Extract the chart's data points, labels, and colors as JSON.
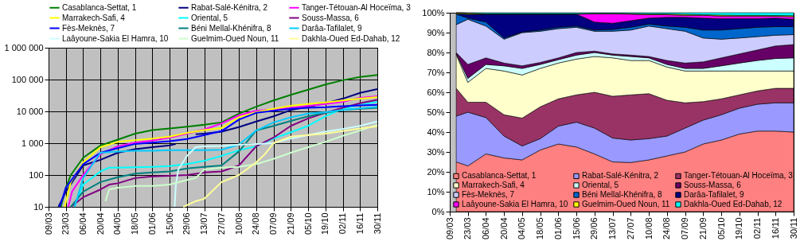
{
  "chart_data": [
    {
      "type": "line",
      "log": "y",
      "grid": true,
      "legend": "top",
      "xlim": [
        "--03-09",
        "--11-30"
      ],
      "ylim": [
        10,
        1000000
      ],
      "xticks": [
        {
          "value": "--03-09",
          "label": "09/03"
        },
        {
          "value": "--03-23",
          "label": "23/03"
        },
        {
          "value": "--04-06",
          "label": "06/04"
        },
        {
          "value": "--04-20",
          "label": "20/04"
        },
        {
          "value": "--05-04",
          "label": "04/05"
        },
        {
          "value": "--05-18",
          "label": "18/05"
        },
        {
          "value": "--06-01",
          "label": "01/06"
        },
        {
          "value": "--06-15",
          "label": "15/06"
        },
        {
          "value": "--06-29",
          "label": "29/06"
        },
        {
          "value": "--07-13",
          "label": "13/07"
        },
        {
          "value": "--07-27",
          "label": "27/07"
        },
        {
          "value": "--08-10",
          "label": "10/08"
        },
        {
          "value": "--08-24",
          "label": "24/08"
        },
        {
          "value": "--09-07",
          "label": "07/09"
        },
        {
          "value": "--09-21",
          "label": "21/09"
        },
        {
          "value": "--10-05",
          "label": "05/10"
        },
        {
          "value": "--10-19",
          "label": "19/10"
        },
        {
          "value": "--11-02",
          "label": "02/11"
        },
        {
          "value": "--11-16",
          "label": "16/11"
        },
        {
          "value": "--11-30",
          "label": "30/11"
        }
      ],
      "yticks": [
        10,
        100,
        {
          "value": 1000,
          "label": "1 000"
        },
        {
          "value": 10000,
          "label": "10 000"
        },
        {
          "value": 100000,
          "label": "100 000"
        },
        {
          "value": 1000000,
          "label": "1 000 000"
        }
      ],
      "series": [
        {
          "name": "Casablanca-Settat, 1",
          "color": "#008000",
          "x": [
            "--03-19",
            "--03-23",
            "--03-27",
            "--04-06",
            "--04-20",
            "--05-04",
            "--05-18",
            "--06-01",
            "--06-15",
            "--06-29",
            "--07-13",
            "--07-27",
            "--08-10",
            "--08-24",
            "--09-07",
            "--09-21",
            "--10-05",
            "--10-19",
            "--11-02",
            "--11-16",
            "--11-30"
          ],
          "values": [
            10,
            40,
            100,
            350,
            850,
            1300,
            2000,
            2600,
            2900,
            3300,
            3800,
            4500,
            8500,
            14000,
            22000,
            33000,
            48000,
            70000,
            95000,
            120000,
            140000
          ]
        },
        {
          "name": "Rabat-Salé-Kénitra, 2",
          "color": "#000080",
          "x": [
            "--03-17",
            "--03-23",
            "--04-06",
            "--04-20",
            "--05-04",
            "--05-18",
            "--06-01",
            "--06-15",
            "--06-20",
            "--06-29",
            "--07-06",
            "--07-13",
            "--07-27",
            "--08-10",
            "--08-24",
            "--09-07",
            "--09-21",
            "--10-05",
            "--10-19",
            "--11-02",
            "--11-16",
            "--11-30"
          ],
          "values": [
            10,
            30,
            200,
            300,
            500,
            650,
            750,
            850,
            950,
            null,
            1900,
            2000,
            2300,
            3200,
            4800,
            7000,
            11000,
            14000,
            18000,
            25000,
            38000,
            50000
          ]
        },
        {
          "name": "Tanger-Tétouan-Al Hoceïma, 3",
          "color": "#ff00ff",
          "x": [
            "--03-25",
            "--03-28",
            "--04-06",
            "--04-20",
            "--05-04",
            "--05-18",
            "--06-01",
            "--06-15",
            "--06-29",
            "--07-13",
            "--07-27",
            "--08-10",
            "--08-24",
            "--09-07",
            "--09-21",
            "--10-05",
            "--10-19",
            "--11-02",
            "--11-16",
            "--11-30"
          ],
          "values": [
            10,
            30,
            100,
            450,
            800,
            1050,
            1200,
            1500,
            2000,
            2700,
            4200,
            7500,
            10500,
            11500,
            13000,
            15000,
            17000,
            20000,
            26500,
            30000
          ]
        },
        {
          "name": "Marrakech-Safi, 4",
          "color": "#ffff00",
          "x": [
            "--03-22",
            "--03-27",
            "--04-06",
            "--04-20",
            "--05-04",
            "--05-18",
            "--06-01",
            "--06-15",
            "--06-29",
            "--07-13",
            "--07-27",
            "--08-10",
            "--08-24",
            "--09-07",
            "--09-21",
            "--10-05",
            "--10-19",
            "--11-02",
            "--11-16",
            "--11-30"
          ],
          "values": [
            10,
            60,
            250,
            750,
            1100,
            1250,
            1400,
            1600,
            2100,
            2600,
            3000,
            6500,
            9500,
            12000,
            15000,
            17000,
            19000,
            22000,
            25000,
            28000
          ]
        },
        {
          "name": "Oriental, 5",
          "color": "#00ffff",
          "x": [
            "--03-30",
            "--04-06",
            "--04-20",
            "--04-27",
            "--05-04",
            "--06-01",
            "--06-15",
            "--06-29",
            "--07-13",
            "--07-27",
            "--08-10",
            "--08-24",
            "--09-07",
            "--09-21",
            "--10-05",
            "--10-19",
            "--11-02",
            "--11-16",
            "--11-30"
          ],
          "values": [
            10,
            50,
            130,
            170,
            170,
            180,
            190,
            220,
            280,
            400,
            600,
            800,
            1400,
            2200,
            3500,
            7000,
            12000,
            16000,
            20000
          ]
        },
        {
          "name": "Souss-Massa, 6",
          "color": "#800080",
          "x": [
            "--03-27",
            "--04-06",
            "--04-20",
            "--04-27",
            "--05-04",
            "--05-18",
            "--06-01",
            "--06-15",
            "--06-29",
            "--07-13",
            "--07-27",
            "--08-10",
            "--08-24",
            "--09-07",
            "--09-21",
            "--10-05",
            "--10-19",
            "--11-02",
            "--11-16",
            "--11-30"
          ],
          "values": [
            10,
            20,
            35,
            50,
            55,
            80,
            90,
            95,
            100,
            120,
            130,
            200,
            800,
            1500,
            3500,
            6000,
            9000,
            13000,
            18000,
            23000
          ]
        },
        {
          "name": "Fès-Meknès, 7",
          "color": "#0000ff",
          "x": [
            "--03-18",
            "--03-23",
            "--04-06",
            "--04-20",
            "--05-04",
            "--05-18",
            "--06-01",
            "--06-15",
            "--06-29",
            "--07-13",
            "--07-27",
            "--08-10",
            "--08-24",
            "--09-07",
            "--09-21",
            "--10-05",
            "--10-19",
            "--11-02",
            "--11-16",
            "--11-30"
          ],
          "values": [
            10,
            40,
            220,
            500,
            700,
            950,
            1050,
            1150,
            1350,
            1800,
            2400,
            5500,
            9000,
            10500,
            12000,
            13000,
            13500,
            14500,
            15500,
            16000
          ]
        },
        {
          "name": "Béni Mellal-Khénifra, 8",
          "color": "#008080",
          "x": [
            "--03-27",
            "--04-06",
            "--04-20",
            "--05-04",
            "--05-18",
            "--06-01",
            "--06-15",
            "--06-29",
            "--07-13",
            "--07-27",
            "--08-10",
            "--08-24",
            "--09-07",
            "--09-21",
            "--10-05",
            "--10-19",
            "--11-02",
            "--11-16",
            "--11-30"
          ],
          "values": [
            10,
            30,
            60,
            85,
            110,
            120,
            130,
            160,
            180,
            200,
            550,
            2500,
            3500,
            5000,
            7000,
            9000,
            11000,
            12000,
            13000
          ]
        },
        {
          "name": "Darâa-Tafilalet, 9",
          "color": "#00ccff",
          "x": [
            "--03-30",
            "--04-06",
            "--04-20",
            "--05-04",
            "--05-18",
            "--06-01",
            "--06-15",
            "--06-29",
            "--07-13",
            "--07-27",
            "--08-10",
            "--08-24",
            "--09-07",
            "--09-21",
            "--10-05",
            "--10-19",
            "--11-02",
            "--11-16",
            "--11-30"
          ],
          "values": [
            10,
            80,
            500,
            550,
            580,
            580,
            600,
            600,
            600,
            620,
            900,
            2500,
            4500,
            6500,
            8500,
            9500,
            11000,
            12500,
            14000
          ]
        },
        {
          "name": "Laâyoune-Sakia El Hamra, 10",
          "color": "#ccffff",
          "x": [
            "--06-19",
            "--06-20",
            "--06-22",
            "--06-29",
            "--07-06",
            "--07-13",
            "--07-27",
            "--08-10",
            "--08-24",
            "--09-07",
            "--09-21",
            "--10-05",
            "--10-19",
            "--11-02",
            "--11-16",
            "--11-30"
          ],
          "values": [
            10,
            50,
            150,
            400,
            750,
            800,
            820,
            900,
            950,
            1000,
            1400,
            1800,
            2300,
            2800,
            3500,
            4800
          ]
        },
        {
          "name": "Guelmim-Oued Noun, 11",
          "color": "#ccffcc",
          "x": [
            "--04-24",
            "--04-27",
            "--05-04",
            "--05-18",
            "--06-01",
            "--06-15",
            "--06-29",
            "--07-06",
            "--07-13",
            "--07-27",
            "--08-10",
            "--08-24",
            "--09-07",
            "--09-21",
            "--10-05",
            "--10-19",
            "--11-02",
            "--11-16",
            "--11-30"
          ],
          "values": [
            15,
            35,
            40,
            45,
            45,
            50,
            70,
            80,
            150,
            170,
            180,
            220,
            320,
            500,
            750,
            1100,
            1700,
            2500,
            3800
          ]
        },
        {
          "name": "Dakhla-Oued Ed-Dahab, 12",
          "color": "#ffff99",
          "x": [
            "--06-26",
            "--07-06",
            "--07-13",
            "--07-27",
            "--08-10",
            "--08-24",
            "--08-31",
            "--09-07",
            "--09-21",
            "--10-05",
            "--10-19",
            "--11-02",
            "--11-16",
            "--11-30"
          ],
          "values": [
            10,
            15,
            18,
            60,
            100,
            250,
            450,
            1000,
            1600,
            1800,
            2000,
            2400,
            2900,
            3400
          ]
        }
      ]
    },
    {
      "type": "area",
      "stacked": true,
      "legend": "bottom left",
      "xlim": [
        "--03-09",
        "--11-30"
      ],
      "ylim": [
        0,
        100
      ],
      "xticks": [
        {
          "value": "--03-09",
          "label": "09/03"
        },
        {
          "value": "--03-23",
          "label": "23/03"
        },
        {
          "value": "--04-06",
          "label": "06/04"
        },
        {
          "value": "--04-20",
          "label": "20/04"
        },
        {
          "value": "--05-04",
          "label": "04/05"
        },
        {
          "value": "--05-18",
          "label": "18/05"
        },
        {
          "value": "--06-01",
          "label": "01/06"
        },
        {
          "value": "--06-15",
          "label": "15/06"
        },
        {
          "value": "--06-29",
          "label": "29/06"
        },
        {
          "value": "--07-13",
          "label": "13/07"
        },
        {
          "value": "--07-27",
          "label": "27/07"
        },
        {
          "value": "--08-10",
          "label": "10/08"
        },
        {
          "value": "--08-24",
          "label": "24/08"
        },
        {
          "value": "--09-07",
          "label": "07/09"
        },
        {
          "value": "--09-21",
          "label": "21/09"
        },
        {
          "value": "--10-05",
          "label": "05/10"
        },
        {
          "value": "--10-19",
          "label": "19/10"
        },
        {
          "value": "--11-02",
          "label": "02/11"
        },
        {
          "value": "--11-16",
          "label": "16/11"
        },
        {
          "value": "--11-30",
          "label": "30/11"
        }
      ],
      "yticks": [
        {
          "value": 0,
          "label": "0%"
        },
        {
          "value": 10,
          "label": "10%"
        },
        {
          "value": 20,
          "label": "20%"
        },
        {
          "value": 30,
          "label": "30%"
        },
        {
          "value": 40,
          "label": "40%"
        },
        {
          "value": 50,
          "label": "50%"
        },
        {
          "value": 60,
          "label": "60%"
        },
        {
          "value": 70,
          "label": "70%"
        },
        {
          "value": 80,
          "label": "80%"
        },
        {
          "value": 90,
          "label": "90%"
        },
        {
          "value": 100,
          "label": "100%"
        }
      ],
      "x": [
        "--03-14",
        "--03-23",
        "--04-06",
        "--04-20",
        "--05-04",
        "--05-18",
        "--06-01",
        "--06-15",
        "--06-29",
        "--07-13",
        "--07-27",
        "--08-10",
        "--08-24",
        "--09-07",
        "--09-21",
        "--10-05",
        "--10-19",
        "--11-02",
        "--11-16",
        "--11-30"
      ],
      "series": [
        {
          "name": "Casablanca-Settat, 1",
          "color": "#ff8080",
          "values": [
            25,
            23,
            29,
            27,
            26,
            31,
            34,
            32.5,
            29,
            25,
            24.7,
            26,
            28,
            30,
            34,
            36,
            39,
            40.5,
            40.5,
            40
          ]
        },
        {
          "name": "Rabat-Salé-Kénitra, 2",
          "color": "#9999ff",
          "values": [
            23,
            27,
            18.3,
            11,
            7,
            5.7,
            9,
            12.5,
            13,
            12,
            11.3,
            10.7,
            10,
            12,
            12,
            12.7,
            13,
            13.5,
            14.2,
            14.7
          ]
        },
        {
          "name": "Tanger-Tétouan-Al Hoceïma, 3",
          "color": "#993366",
          "values": [
            14,
            5,
            7.7,
            10.7,
            14,
            16,
            13.7,
            13.7,
            18,
            21,
            22.7,
            22.6,
            18,
            12.7,
            9.3,
            8,
            6.7,
            6.7,
            7.3,
            7.3
          ]
        },
        {
          "name": "Marrakech-Safi, 4",
          "color": "#ffffcc",
          "values": [
            17,
            10,
            17,
            22,
            21.7,
            19.3,
            18,
            18,
            18,
            19.3,
            17.3,
            16.7,
            16.7,
            16,
            15.4,
            14,
            12,
            10,
            8.7,
            8.7
          ]
        },
        {
          "name": "Oriental, 5",
          "color": "#ccffff",
          "values": [
            0.5,
            2,
            2,
            2.6,
            3.3,
            2,
            1.7,
            2,
            2,
            1.4,
            2,
            1.3,
            1.3,
            1.3,
            1.3,
            2.6,
            4,
            5.3,
            6.3,
            6.6
          ]
        },
        {
          "name": "Souss-Massa, 6",
          "color": "#660066",
          "values": [
            0.5,
            7,
            3.3,
            1.4,
            1.3,
            1,
            0.9,
            1.3,
            0.7,
            0.6,
            0.7,
            0.7,
            2,
            2.7,
            3.3,
            4,
            4.6,
            5.3,
            6.3,
            6.7
          ]
        },
        {
          "name": "Fès-Meknès, 7",
          "color": "#ccccff",
          "values": [
            14,
            22.7,
            16,
            12,
            16.7,
            15.7,
            14.7,
            12.7,
            10,
            11.4,
            12.6,
            15.3,
            16,
            16,
            12,
            9.4,
            8,
            6.7,
            5.4,
            5
          ]
        },
        {
          "name": "Béni Mellal-Khénifra, 8",
          "color": "#0066cc",
          "values": [
            5.3,
            0.6,
            2,
            0.6,
            0.3,
            0.6,
            0.7,
            0.6,
            0.6,
            0.9,
            1.4,
            1,
            1.3,
            2,
            4,
            4.6,
            4.7,
            4.7,
            4.3,
            4
          ]
        },
        {
          "name": "Darâa-Tafilalet, 9",
          "color": "#000080",
          "values": [
            0.2,
            2,
            4,
            12,
            9,
            8,
            6.6,
            6,
            4,
            3.1,
            3.3,
            3,
            4.4,
            5,
            6,
            5.7,
            5,
            4.3,
            4.3,
            3.7
          ]
        },
        {
          "name": "Laâyoune-Sakia El Hamra, 10",
          "color": "#ff00ff",
          "values": [
            0,
            0,
            0,
            0,
            0,
            0,
            0,
            0,
            4.2,
            4.8,
            3.3,
            1.7,
            1.3,
            1,
            1.4,
            1.3,
            1.3,
            1.3,
            0.9,
            1.3
          ]
        },
        {
          "name": "Guelmim-Oued Noun, 11",
          "color": "#ffff00",
          "values": [
            0.5,
            0.5,
            0.2,
            0.2,
            0.2,
            0.2,
            0.2,
            0.2,
            0.2,
            0.2,
            0.3,
            0.4,
            0.4,
            0.5,
            0.3,
            0.5,
            0.4,
            0.4,
            0.4,
            0.5
          ]
        },
        {
          "name": "Dakhla-Oued Ed-Dahab, 12",
          "color": "#00ffff",
          "values": [
            0,
            0.2,
            0.5,
            0.5,
            0.5,
            0.5,
            0.5,
            0.5,
            0.3,
            0.3,
            0.4,
            0.6,
            0.6,
            0.8,
            1,
            1.2,
            1.3,
            1.3,
            1.4,
            1.5
          ]
        }
      ]
    }
  ]
}
